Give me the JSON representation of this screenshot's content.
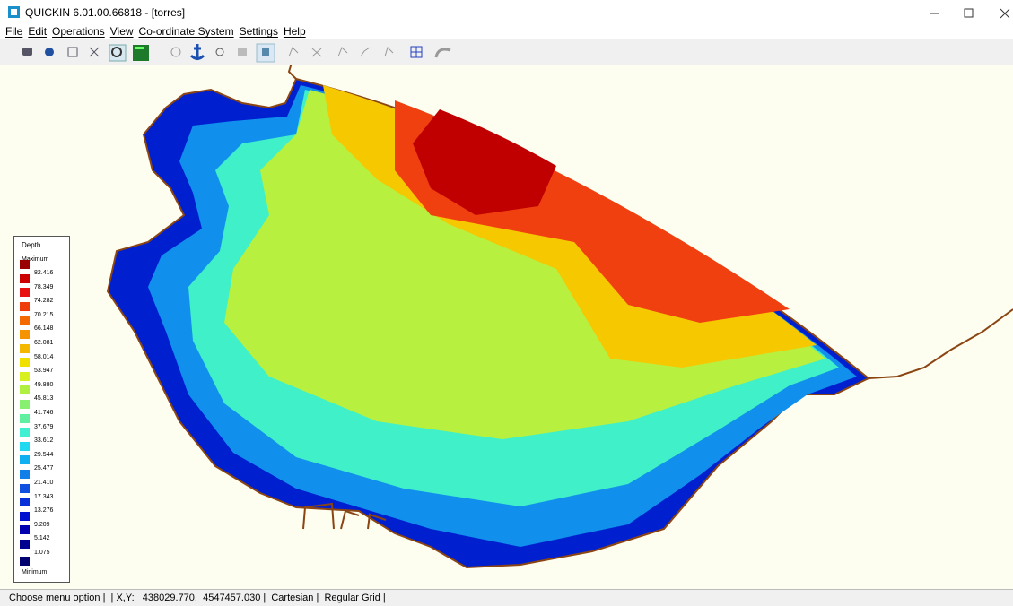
{
  "window": {
    "title": "QUICKIN 6.01.00.66818 - [torres]"
  },
  "menu": [
    "File",
    "Edit",
    "Operations",
    "View",
    "Co-ordinate System",
    "Settings",
    "Help"
  ],
  "legend": {
    "title": "Depth",
    "max_label": "Maximum",
    "min_label": "Minimum",
    "min_color": "#000070",
    "items": [
      {
        "label": "82.416",
        "color": "#9b0000"
      },
      {
        "label": "78.349",
        "color": "#cc0000"
      },
      {
        "label": "74.282",
        "color": "#e81010"
      },
      {
        "label": "70.215",
        "color": "#f03c0a"
      },
      {
        "label": "66.148",
        "color": "#f56a00"
      },
      {
        "label": "62.081",
        "color": "#f59300"
      },
      {
        "label": "58.014",
        "color": "#f5b800"
      },
      {
        "label": "53.947",
        "color": "#f0e000"
      },
      {
        "label": "49.880",
        "color": "#d8f020"
      },
      {
        "label": "45.813",
        "color": "#b0f040"
      },
      {
        "label": "41.746",
        "color": "#88f070"
      },
      {
        "label": "37.679",
        "color": "#60f0a0"
      },
      {
        "label": "33.612",
        "color": "#40f0d0"
      },
      {
        "label": "29.544",
        "color": "#20d8f0"
      },
      {
        "label": "25.477",
        "color": "#10b0f0"
      },
      {
        "label": "21.410",
        "color": "#1080e8"
      },
      {
        "label": "17.343",
        "color": "#1050e0"
      },
      {
        "label": "13.276",
        "color": "#0830d8"
      },
      {
        "label": "9.209",
        "color": "#0010d0"
      },
      {
        "label": "5.142",
        "color": "#0000b0"
      },
      {
        "label": "1.075",
        "color": "#000090"
      }
    ]
  },
  "status": "Choose menu option |  | X,Y:   438029.770,  4547457.030 |  Cartesian |  Regular Grid |"
}
